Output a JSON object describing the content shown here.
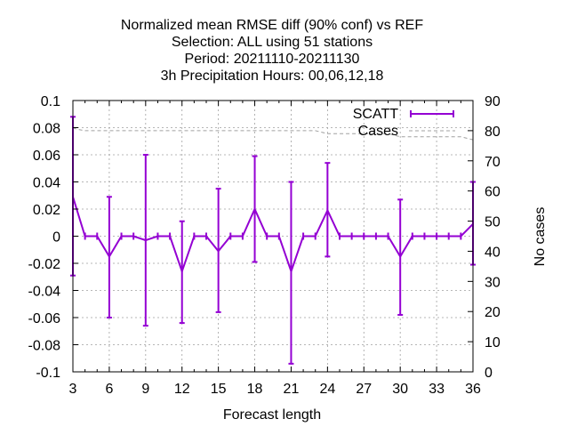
{
  "chart_data": {
    "type": "line",
    "title_lines": [
      "Normalized mean RMSE diff (90% conf) vs REF",
      "Selection: ALL using    51 stations",
      "Period: 20211110-20211130",
      "3h Precipitation   Hours:  00,06,12,18"
    ],
    "xlabel": "Forecast length",
    "ylabel": "",
    "y2label": "No cases",
    "xlim": [
      3,
      36
    ],
    "ylim": [
      -0.1,
      0.1
    ],
    "y2lim": [
      0,
      90
    ],
    "xticks": [
      3,
      6,
      9,
      12,
      15,
      18,
      21,
      24,
      27,
      30,
      33,
      36
    ],
    "xtick_labels": [
      "3",
      "6",
      "9",
      "12",
      "15",
      "18",
      "21",
      "24",
      "27",
      "30",
      "33",
      "36"
    ],
    "yticks": [
      -0.1,
      -0.08,
      -0.06,
      -0.04,
      -0.02,
      0,
      0.02,
      0.04,
      0.06,
      0.08,
      0.1
    ],
    "ytick_labels": [
      "-0.1",
      "-0.08",
      "-0.06",
      "-0.04",
      "-0.02",
      "0",
      "0.02",
      "0.04",
      "0.06",
      "0.08",
      "0.1"
    ],
    "y2ticks": [
      0,
      10,
      20,
      30,
      40,
      50,
      60,
      70,
      80,
      90
    ],
    "y2tick_labels": [
      "0",
      "10",
      "20",
      "30",
      "40",
      "50",
      "60",
      "70",
      "80",
      "90"
    ],
    "grid": true,
    "legend_position": "top-right",
    "series": [
      {
        "name": "SCATT",
        "color": "#9400d3",
        "style": "errorbars",
        "x": [
          3,
          4,
          5,
          6,
          7,
          8,
          9,
          10,
          11,
          12,
          13,
          14,
          15,
          16,
          17,
          18,
          19,
          20,
          21,
          22,
          23,
          24,
          25,
          26,
          27,
          28,
          29,
          30,
          31,
          32,
          33,
          34,
          35,
          36
        ],
        "y": [
          0.029,
          0,
          0,
          -0.015,
          0,
          0,
          -0.003,
          0,
          0,
          -0.026,
          0,
          0,
          -0.011,
          0,
          0,
          0.02,
          0,
          0,
          -0.026,
          0,
          0,
          0.019,
          0,
          0,
          0,
          0,
          0,
          -0.015,
          0,
          0,
          0,
          0,
          0,
          0.009
        ],
        "low": [
          -0.029,
          0,
          0,
          -0.06,
          0,
          0,
          -0.066,
          0,
          0,
          -0.064,
          0,
          0,
          -0.056,
          0,
          0,
          -0.019,
          0,
          0,
          -0.094,
          0,
          0,
          -0.015,
          0,
          0,
          0,
          0,
          0,
          -0.058,
          0,
          0,
          0,
          0,
          0,
          -0.021
        ],
        "high": [
          0.088,
          0,
          0,
          0.029,
          0,
          0,
          0.06,
          0,
          0,
          0.011,
          0,
          0,
          0.035,
          0,
          0,
          0.059,
          0,
          0,
          0.04,
          0,
          0,
          0.054,
          0,
          0,
          0,
          0,
          0,
          0.027,
          0,
          0,
          0,
          0,
          0,
          0.04
        ]
      },
      {
        "name": "Cases",
        "color": "#a0a0a0",
        "style": "dashed",
        "axis": "y2",
        "x": [
          3,
          3.3,
          4,
          5,
          6,
          7,
          8,
          9,
          10,
          11,
          12,
          13,
          14,
          15,
          16,
          17,
          18,
          19,
          20,
          21,
          22,
          23,
          24,
          25,
          26,
          27,
          28,
          29,
          30,
          31,
          32,
          33,
          34,
          35,
          36
        ],
        "y": [
          81,
          80.5,
          80,
          80,
          80,
          80,
          80,
          80,
          80,
          80,
          80,
          80,
          80,
          80,
          80,
          80,
          80,
          80,
          80,
          80,
          80,
          80,
          79,
          79,
          79,
          79,
          79,
          79,
          78,
          78,
          78,
          78,
          78,
          78,
          77
        ]
      }
    ]
  }
}
